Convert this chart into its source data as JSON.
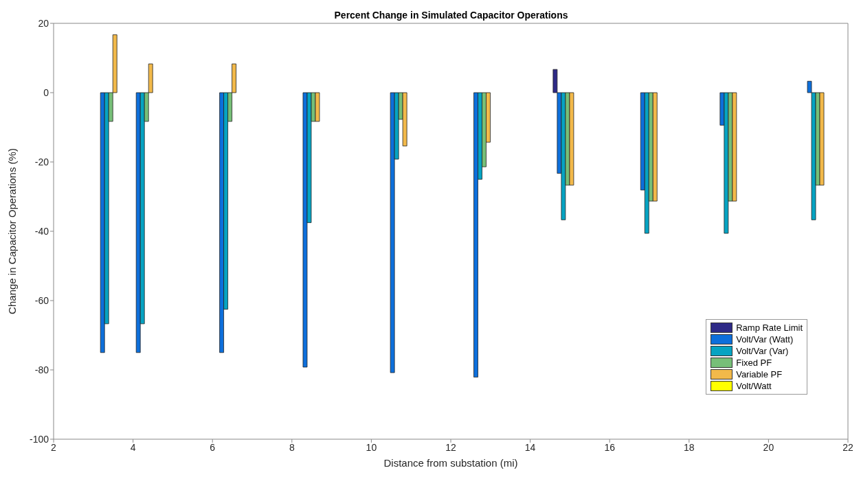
{
  "chart_data": {
    "type": "bar",
    "title": "Percent Change in Simulated Capacitor Operations",
    "xlabel": "Distance from substation (mi)",
    "ylabel": "Change in Capacitor Operations (%)",
    "x": [
      3.4,
      4.3,
      6.4,
      8.5,
      10.7,
      12.8,
      14.9,
      17.0,
      19.0,
      21.2
    ],
    "series": [
      {
        "name": "Ramp Rate Limit",
        "color": "#2e2a86",
        "values": [
          0,
          0,
          0,
          0,
          0,
          0,
          6.7,
          0,
          0,
          0
        ]
      },
      {
        "name": "Volt/Var (Watt)",
        "color": "#0d6fdb",
        "values": [
          -75,
          -75,
          -75,
          -79.2,
          -80.8,
          -82.1,
          -23.3,
          -28.1,
          -9.4,
          3.3
        ]
      },
      {
        "name": "Volt/Var (Var)",
        "color": "#06a3c2",
        "values": [
          -66.7,
          -66.7,
          -62.5,
          -37.5,
          -19.2,
          -25,
          -36.7,
          -40.6,
          -40.6,
          -36.7
        ]
      },
      {
        "name": "Fixed PF",
        "color": "#77bf78",
        "values": [
          -8.3,
          -8.3,
          -8.3,
          -8.3,
          -7.7,
          -21.4,
          -26.7,
          -31.3,
          -31.3,
          -26.7
        ]
      },
      {
        "name": "Variable PF",
        "color": "#f2b94a",
        "values": [
          16.7,
          8.3,
          8.3,
          -8.3,
          -15.4,
          -14.3,
          -26.7,
          -31.3,
          -31.3,
          -26.7
        ]
      },
      {
        "name": "Volt/Watt",
        "color": "#ffff00",
        "values": [
          0,
          0,
          0,
          0,
          0,
          0,
          0,
          0,
          0,
          0
        ]
      }
    ],
    "xlim": [
      2,
      22
    ],
    "xticks": [
      2,
      4,
      6,
      8,
      10,
      12,
      14,
      16,
      18,
      20,
      22
    ],
    "ylim": [
      -100,
      20
    ],
    "yticks": [
      -100,
      -80,
      -60,
      -40,
      -20,
      0,
      20
    ],
    "legend": "bottom right",
    "grid": false
  }
}
